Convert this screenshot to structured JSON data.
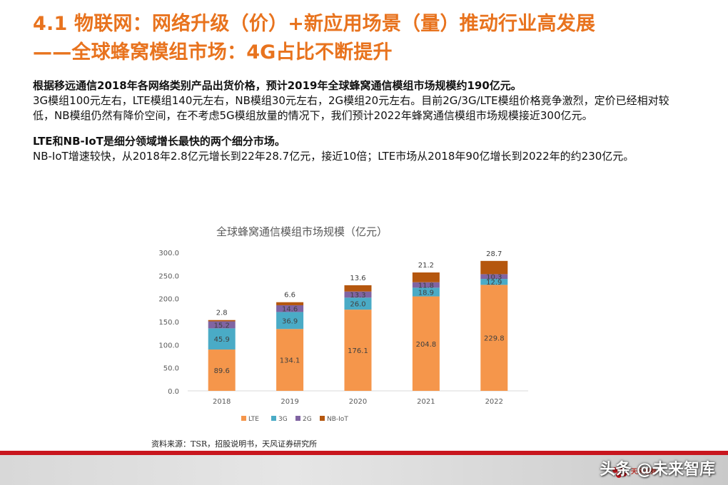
{
  "slide": {
    "title_line1": "4.1 物联网：网络升级（价）+新应用场景（量）推动行业高发展",
    "title_line2": "——全球蜂窝模组市场：4G占比不断提升",
    "paragraphs": [
      {
        "text": "根据移远通信2018年各网络类别产品出货价格，预计2019年全球蜂窝通信模组市场规模约190亿元。",
        "bold": true
      },
      {
        "text": "3G模组100元左右，LTE模组140元左右，NB模组30元左右，2G模组20元左右。目前2G/3G/LTE模组价格竞争激烈，定价已经相对较低，NB模组仍然有降价空间，在不考虑5G模组放量的情况下，我们预计2022年蜂窝通信模组市场规模接近300亿元。",
        "bold": false
      },
      {
        "text": "LTE和NB-IoT是细分领域增长最快的两个细分市场。",
        "bold": true
      },
      {
        "text": "NB-IoT增速较快，从2018年2.8亿元增长到22年28.7亿元，接近10倍；LTE市场从2018年90亿增长到2022年的约230亿元。",
        "bold": false
      }
    ],
    "source": "资料来源：TSR，招股说明书，天风证券研究所",
    "brand": {
      "logo_icon": "tianfeng-logo-icon",
      "logo_text": "天风证券"
    },
    "watermark": "头条 @未来智库",
    "colors": {
      "title": "#e8731e",
      "footer_accent": "#c8161e"
    }
  },
  "chart_data": {
    "type": "bar",
    "stacked": true,
    "title": "全球蜂窝通信模组市场规模（亿元）",
    "categories": [
      "2018",
      "2019",
      "2020",
      "2021",
      "2022"
    ],
    "series": [
      {
        "name": "LTE",
        "color": "#f5964b",
        "values": [
          89.6,
          134.1,
          176.1,
          204.8,
          229.8
        ]
      },
      {
        "name": "3G",
        "color": "#4aabc6",
        "values": [
          45.9,
          36.9,
          26.0,
          18.9,
          12.9
        ]
      },
      {
        "name": "2G",
        "color": "#8064a2",
        "values": [
          15.2,
          14.6,
          13.3,
          11.8,
          10.3
        ]
      },
      {
        "name": "NB-IoT",
        "color": "#b5570e",
        "values": [
          2.8,
          6.6,
          13.6,
          21.2,
          28.7
        ]
      }
    ],
    "yticks": [
      "0.0",
      "50.0",
      "100.0",
      "150.0",
      "200.0",
      "250.0",
      "300.0"
    ],
    "ylim": [
      0,
      300
    ],
    "legend_position": "bottom",
    "grid": false
  }
}
